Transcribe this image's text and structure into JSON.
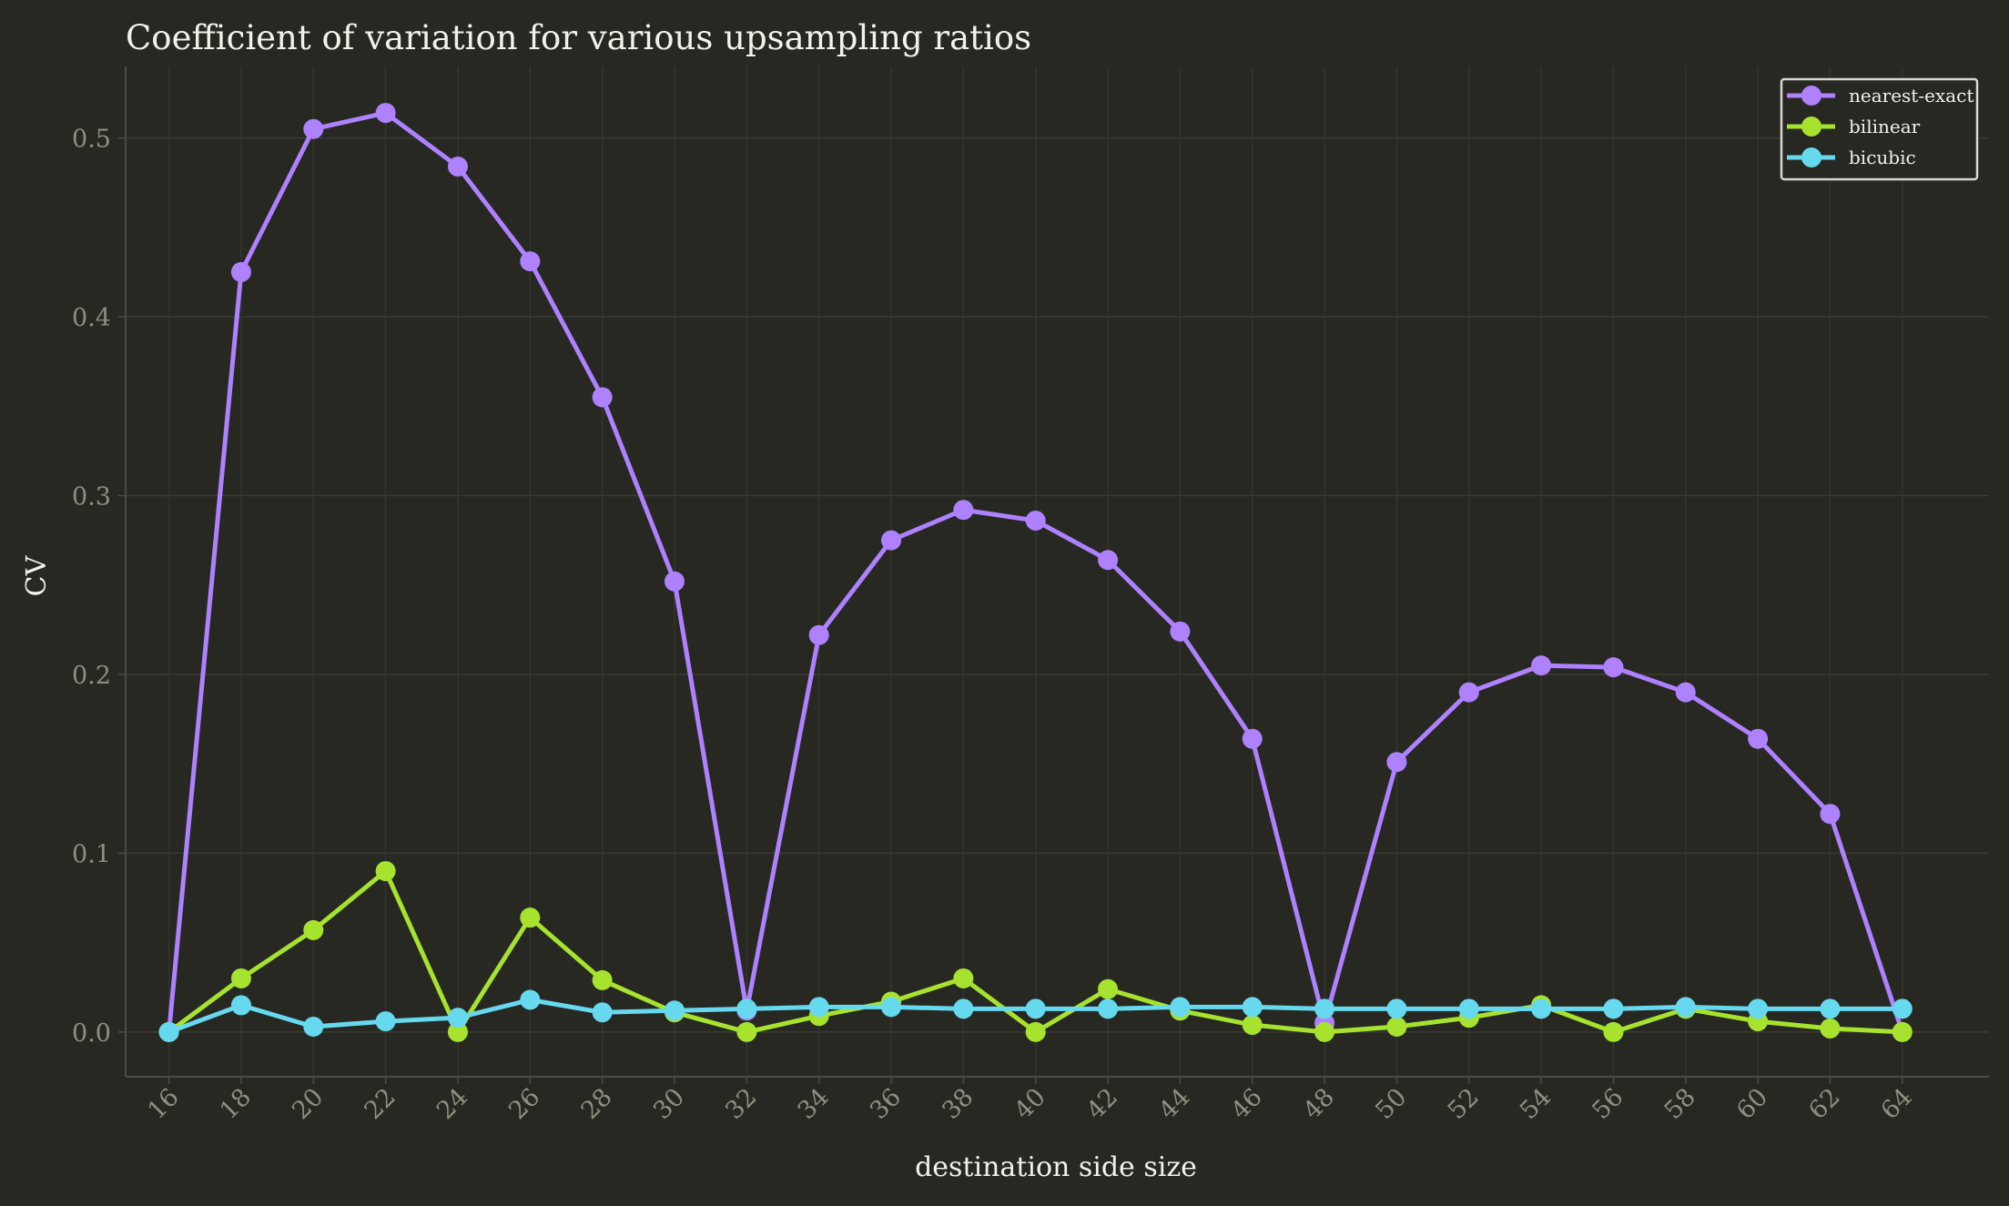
{
  "chart_data": {
    "type": "line",
    "title": "Coefficient of variation for various upsampling ratios",
    "xlabel": "destination side size",
    "ylabel": "CV",
    "x": [
      16,
      18,
      20,
      22,
      24,
      26,
      28,
      30,
      32,
      34,
      36,
      38,
      40,
      42,
      44,
      46,
      48,
      50,
      52,
      54,
      56,
      58,
      60,
      62,
      64
    ],
    "xticks": [
      "16",
      "18",
      "20",
      "22",
      "24",
      "26",
      "28",
      "30",
      "32",
      "34",
      "36",
      "38",
      "40",
      "42",
      "44",
      "46",
      "48",
      "50",
      "52",
      "54",
      "56",
      "58",
      "60",
      "62",
      "64"
    ],
    "yticks": [
      "0.0",
      "0.1",
      "0.2",
      "0.3",
      "0.4",
      "0.5"
    ],
    "ytick_values": [
      0.0,
      0.1,
      0.2,
      0.3,
      0.4,
      0.5
    ],
    "xlim": [
      14.8,
      66.4
    ],
    "ylim": [
      -0.025,
      0.54
    ],
    "grid": true,
    "legend_position": "top-right",
    "series": [
      {
        "name": "nearest-exact",
        "color": "#ae81ff",
        "values": [
          0.0,
          0.425,
          0.505,
          0.514,
          0.484,
          0.431,
          0.355,
          0.252,
          0.012,
          0.222,
          0.275,
          0.292,
          0.286,
          0.264,
          0.224,
          0.164,
          0.005,
          0.151,
          0.19,
          0.205,
          0.204,
          0.19,
          0.164,
          0.122,
          0.0
        ]
      },
      {
        "name": "bilinear",
        "color": "#a6e22e",
        "values": [
          0.0,
          0.03,
          0.057,
          0.09,
          0.0,
          0.064,
          0.029,
          0.011,
          0.0,
          0.009,
          0.017,
          0.03,
          0.0,
          0.024,
          0.012,
          0.004,
          0.0,
          0.003,
          0.008,
          0.015,
          0.0,
          0.013,
          0.006,
          0.002,
          0.0
        ]
      },
      {
        "name": "bicubic",
        "color": "#66d9ef",
        "values": [
          0.0,
          0.015,
          0.003,
          0.006,
          0.008,
          0.018,
          0.011,
          0.012,
          0.013,
          0.014,
          0.014,
          0.013,
          0.013,
          0.013,
          0.014,
          0.014,
          0.013,
          0.013,
          0.013,
          0.013,
          0.013,
          0.014,
          0.013,
          0.013,
          0.013
        ]
      }
    ]
  }
}
